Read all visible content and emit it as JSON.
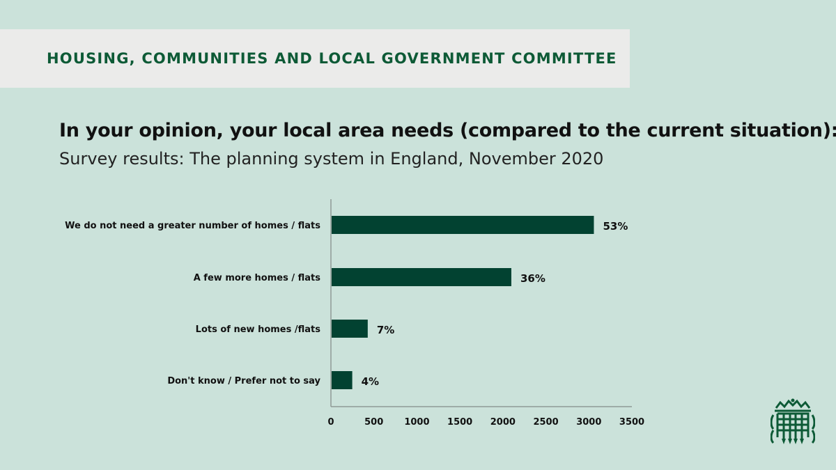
{
  "header": {
    "committee": "HOUSING, COMMUNITIES AND LOCAL GOVERNMENT COMMITTEE"
  },
  "logo": {
    "icon": "portcullis-icon",
    "color": "#0d5a36"
  },
  "chart_data": {
    "type": "bar",
    "orientation": "horizontal",
    "title": "In your opinion, your local area needs (compared to the current situation):",
    "subtitle": "Survey results: The planning system in England, November 2020",
    "categories": [
      "We do not need a greater number of homes / flats",
      "A few more homes / flats",
      "Lots of new homes /flats",
      "Don't know / Prefer not to say"
    ],
    "values": [
      3050,
      2090,
      420,
      240
    ],
    "data_labels": [
      "53%",
      "36%",
      "7%",
      "4%"
    ],
    "xlim": [
      0,
      3500
    ],
    "xticks": [
      "0",
      "500",
      "1000",
      "1500",
      "2000",
      "2500",
      "3000",
      "3500"
    ],
    "bar_color": "#024231",
    "grid": false,
    "legend": "none"
  }
}
